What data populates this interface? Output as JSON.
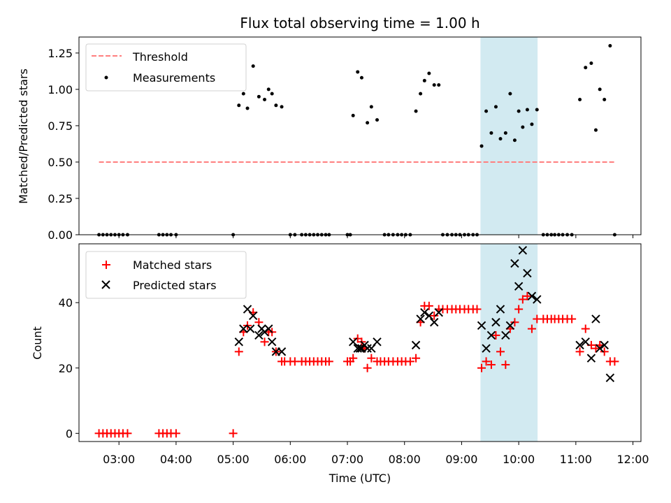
{
  "chart_data": {
    "title": "Flux total observing time = 1.00 h",
    "xlabel": "Time (UTC)",
    "x_ticks": [
      "03:00",
      "04:00",
      "05:00",
      "06:00",
      "07:00",
      "08:00",
      "09:00",
      "10:00",
      "11:00",
      "12:00"
    ],
    "x_tick_hours": [
      3,
      4,
      5,
      6,
      7,
      8,
      9,
      10,
      11,
      12
    ],
    "xlim_hours": [
      2.3,
      12.14
    ],
    "highlight_span_hours": [
      9.33,
      10.33
    ],
    "highlight_color": "#add8e6",
    "panels": [
      {
        "type": "scatter",
        "ylabel": "Matched/Predicted stars",
        "ylim": [
          0,
          1.36
        ],
        "y_ticks": [
          0,
          0.25,
          0.5,
          0.75,
          1.0,
          1.25
        ],
        "y_tick_labels": [
          "0.00",
          "0.25",
          "0.50",
          "0.75",
          "1.00",
          "1.25"
        ],
        "legend": "upper-left",
        "series": [
          {
            "name": "Threshold",
            "kind": "line",
            "style": "dashed",
            "color": "#ff7f7f",
            "x": [
              2.65,
              11.68
            ],
            "y": [
              0.5,
              0.5
            ]
          },
          {
            "name": "Measurements",
            "kind": "points",
            "marker": "dot",
            "color": "#000000",
            "x": [
              2.65,
              2.72,
              2.79,
              2.86,
              2.93,
              3.0,
              3.07,
              3.15,
              3.7,
              3.77,
              3.84,
              3.91,
              4.0,
              5.0,
              5.1,
              5.18,
              5.25,
              5.35,
              5.45,
              5.55,
              5.62,
              5.68,
              5.75,
              5.85,
              6.0,
              6.08,
              6.2,
              6.27,
              6.34,
              6.41,
              6.48,
              6.55,
              6.62,
              6.68,
              7.0,
              7.05,
              7.1,
              7.18,
              7.25,
              7.35,
              7.42,
              7.52,
              7.65,
              7.72,
              7.8,
              7.88,
              7.95,
              8.02,
              8.1,
              8.2,
              8.28,
              8.35,
              8.43,
              8.52,
              8.6,
              8.67,
              8.75,
              8.83,
              8.9,
              8.97,
              9.05,
              9.12,
              9.2,
              9.27,
              9.35,
              9.43,
              9.52,
              9.6,
              9.68,
              9.77,
              9.85,
              9.93,
              10.0,
              10.07,
              10.15,
              10.23,
              10.32,
              10.43,
              10.5,
              10.57,
              10.63,
              10.7,
              10.77,
              10.85,
              10.93,
              11.07,
              11.17,
              11.27,
              11.35,
              11.42,
              11.5,
              11.6,
              11.68
            ],
            "y": [
              0,
              0,
              0,
              0,
              0,
              0,
              0,
              0,
              0,
              0,
              0,
              0,
              0,
              0,
              0.89,
              0.97,
              0.87,
              1.16,
              0.95,
              0.93,
              1.0,
              0.97,
              0.89,
              0.88,
              0,
              0,
              0,
              0,
              0,
              0,
              0,
              0,
              0,
              0,
              0,
              0,
              0.82,
              1.12,
              1.08,
              0.77,
              0.88,
              0.79,
              0,
              0,
              0,
              0,
              0,
              0,
              0,
              0.85,
              0.97,
              1.06,
              1.11,
              1.03,
              1.03,
              0,
              0,
              0,
              0,
              0,
              0,
              0,
              0,
              0,
              0.61,
              0.85,
              0.7,
              0.88,
              0.66,
              0.7,
              0.97,
              0.65,
              0.85,
              0.74,
              0.86,
              0.76,
              0.86,
              0,
              0,
              0,
              0,
              0,
              0,
              0,
              0,
              0.93,
              1.15,
              1.18,
              0.72,
              1.0,
              0.93,
              1.3,
              0
            ]
          }
        ]
      },
      {
        "type": "scatter",
        "ylabel": "Count",
        "ylim": [
          -2.5,
          58
        ],
        "y_ticks": [
          0,
          20,
          40
        ],
        "y_tick_labels": [
          "0",
          "20",
          "40"
        ],
        "legend": "upper-left",
        "series": [
          {
            "name": "Matched stars",
            "kind": "points",
            "marker": "plus",
            "color": "#ff0000",
            "x": [
              2.65,
              2.72,
              2.79,
              2.86,
              2.93,
              3.0,
              3.07,
              3.15,
              3.7,
              3.77,
              3.84,
              3.91,
              4.0,
              5.0,
              5.1,
              5.18,
              5.25,
              5.35,
              5.45,
              5.55,
              5.62,
              5.68,
              5.75,
              5.85,
              5.9,
              6.0,
              6.08,
              6.2,
              6.27,
              6.34,
              6.41,
              6.48,
              6.55,
              6.62,
              6.68,
              7.0,
              7.05,
              7.1,
              7.18,
              7.25,
              7.3,
              7.35,
              7.42,
              7.52,
              7.58,
              7.65,
              7.72,
              7.8,
              7.88,
              7.95,
              8.02,
              8.1,
              8.2,
              8.28,
              8.35,
              8.43,
              8.52,
              8.6,
              8.67,
              8.75,
              8.83,
              8.9,
              8.97,
              9.05,
              9.12,
              9.2,
              9.27,
              9.35,
              9.43,
              9.52,
              9.6,
              9.68,
              9.77,
              9.85,
              9.93,
              10.0,
              10.07,
              10.15,
              10.23,
              10.32,
              10.43,
              10.5,
              10.57,
              10.63,
              10.7,
              10.77,
              10.85,
              10.93,
              11.07,
              11.17,
              11.27,
              11.35,
              11.42,
              11.5,
              11.6,
              11.68
            ],
            "y": [
              0,
              0,
              0,
              0,
              0,
              0,
              0,
              0,
              0,
              0,
              0,
              0,
              0,
              0,
              25,
              31,
              33,
              37,
              34,
              28,
              31,
              31,
              25,
              22,
              22,
              22,
              22,
              22,
              22,
              22,
              22,
              22,
              22,
              22,
              22,
              22,
              22,
              23,
              29,
              28,
              26,
              20,
              23,
              22,
              22,
              22,
              22,
              22,
              22,
              22,
              22,
              22,
              23,
              34,
              39,
              39,
              36,
              38,
              38,
              38,
              38,
              38,
              38,
              38,
              38,
              38,
              38,
              20,
              22,
              21,
              30,
              25,
              21,
              32,
              34,
              38,
              41,
              42,
              32,
              35,
              35,
              35,
              35,
              35,
              35,
              35,
              35,
              35,
              25,
              32,
              27,
              26,
              27,
              25,
              22,
              22
            ]
          },
          {
            "name": "Predicted stars",
            "kind": "points",
            "marker": "x",
            "color": "#000000",
            "x": [
              5.1,
              5.18,
              5.25,
              5.3,
              5.35,
              5.45,
              5.5,
              5.55,
              5.62,
              5.68,
              5.75,
              5.85,
              7.1,
              7.18,
              7.22,
              7.25,
              7.3,
              7.35,
              7.42,
              7.52,
              8.2,
              8.28,
              8.35,
              8.43,
              8.52,
              8.6,
              9.35,
              9.43,
              9.52,
              9.6,
              9.68,
              9.77,
              9.85,
              9.93,
              10.0,
              10.07,
              10.15,
              10.23,
              10.32,
              11.07,
              11.17,
              11.27,
              11.35,
              11.42,
              11.5,
              11.6
            ],
            "y": [
              28,
              32,
              38,
              32,
              36,
              30,
              32,
              31,
              32,
              28,
              25,
              25,
              28,
              26,
              26,
              26,
              27,
              26,
              26,
              28,
              27,
              35,
              37,
              36,
              34,
              37,
              33,
              26,
              30,
              34,
              38,
              30,
              33,
              52,
              45,
              56,
              49,
              42,
              41,
              27,
              28,
              23,
              35,
              26,
              27,
              17
            ]
          }
        ]
      }
    ]
  }
}
